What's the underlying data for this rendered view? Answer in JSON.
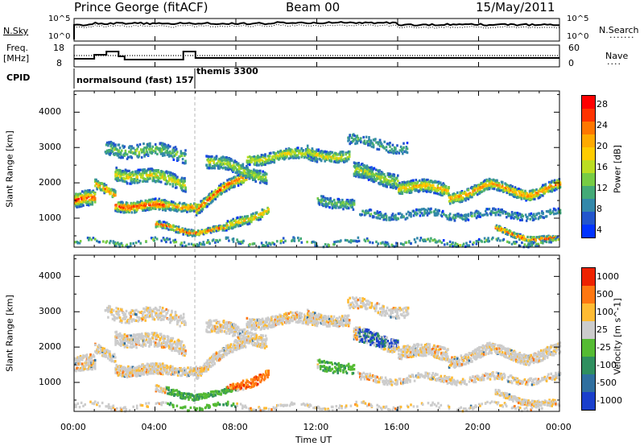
{
  "header": {
    "station": "Prince George (fitACF)",
    "beam": "Beam 00",
    "date": "15/May/2011"
  },
  "panels": {
    "nsky_label": "N.Sky",
    "nsearch_label": "N.Search",
    "freq_label_line1": "Freq.",
    "freq_label_line2": "[MHz]",
    "nave_label": "Nave",
    "cpid_label": "CPID",
    "nsky_ticks": [
      "10^5",
      "10^0"
    ],
    "nsearch_ticks": [
      "10^5",
      "10^0"
    ],
    "freq_ticks": [
      "18",
      "8"
    ],
    "nave_ticks": [
      "60",
      "0"
    ],
    "cpid_modes": [
      {
        "label": "normalsound (fast) 157",
        "start_hour": 0.0
      },
      {
        "label": "themis 3300",
        "start_hour": 6.0
      }
    ]
  },
  "chart_data": [
    {
      "type": "heatmap",
      "name": "power",
      "ylabel": "Slant Range [km]",
      "ylim": [
        180,
        4600
      ],
      "xlim_hours": [
        0,
        24
      ],
      "yticks": [
        1000,
        2000,
        3000,
        4000
      ],
      "colorbar_label": "Power [dB]",
      "colorbar_ticks": [
        "28",
        "24",
        "20",
        "16",
        "12",
        "8",
        "4"
      ],
      "colors": [
        "#0033ff",
        "#2255cc",
        "#3388aa",
        "#44aa77",
        "#77cc44",
        "#bbdd22",
        "#ffcc00",
        "#ffaa00",
        "#ff7700",
        "#ff3300",
        "#ff0000"
      ]
    },
    {
      "type": "heatmap",
      "name": "velocity",
      "ylabel": "Slant Range [km]",
      "ylim": [
        180,
        4600
      ],
      "xlim_hours": [
        0,
        24
      ],
      "yticks": [
        1000,
        2000,
        3000,
        4000
      ],
      "colorbar_label": "Velocity [m s^-1]",
      "colorbar_ticks": [
        "1000",
        "500",
        "100",
        "25",
        "-25",
        "-100",
        "-500",
        "-1000"
      ],
      "colors": [
        "#1a3fcc",
        "#2f6f9f",
        "#2f8f5f",
        "#55bb33",
        "#cccccc",
        "#ffbb33",
        "#ff7711",
        "#ee2200"
      ]
    }
  ],
  "xaxis": {
    "label": "Time UT",
    "ticks": [
      "00:00",
      "04:00",
      "08:00",
      "12:00",
      "16:00",
      "20:00",
      "00:00"
    ]
  }
}
